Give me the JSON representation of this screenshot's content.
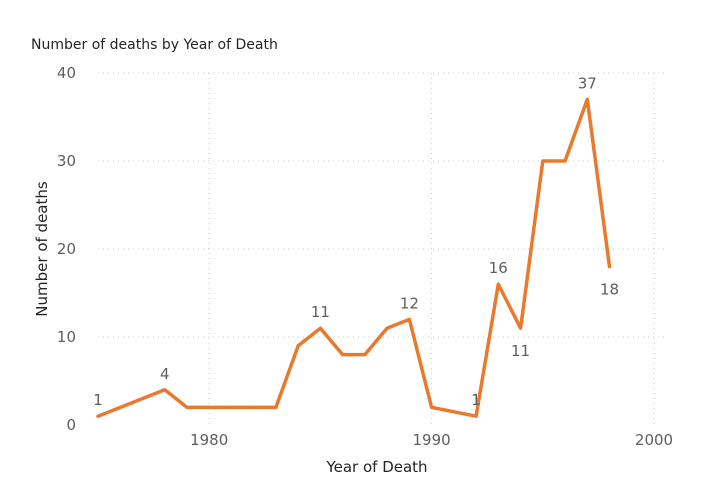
{
  "chart_data": {
    "type": "line",
    "title": "Number of deaths by Year of Death",
    "xlabel": "Year of Death",
    "ylabel": "Number of deaths",
    "xlim": [
      1975,
      2000
    ],
    "ylim": [
      0,
      40
    ],
    "x_ticks": [
      1980,
      1990,
      2000
    ],
    "y_ticks": [
      0,
      10,
      20,
      30,
      40
    ],
    "grid": "dotted",
    "line_color": "#E8792D",
    "series": [
      {
        "points": [
          {
            "x": 1975,
            "y": 1
          },
          {
            "x": 1978,
            "y": 4
          },
          {
            "x": 1979,
            "y": 2
          },
          {
            "x": 1980,
            "y": 2
          },
          {
            "x": 1981,
            "y": 2
          },
          {
            "x": 1982,
            "y": 2
          },
          {
            "x": 1983,
            "y": 2
          },
          {
            "x": 1984,
            "y": 9
          },
          {
            "x": 1985,
            "y": 11
          },
          {
            "x": 1986,
            "y": 8
          },
          {
            "x": 1987,
            "y": 8
          },
          {
            "x": 1988,
            "y": 11
          },
          {
            "x": 1989,
            "y": 12
          },
          {
            "x": 1990,
            "y": 2
          },
          {
            "x": 1992,
            "y": 1
          },
          {
            "x": 1993,
            "y": 16
          },
          {
            "x": 1994,
            "y": 11
          },
          {
            "x": 1995,
            "y": 30
          },
          {
            "x": 1996,
            "y": 30
          },
          {
            "x": 1997,
            "y": 37
          },
          {
            "x": 1998,
            "y": 18
          }
        ]
      }
    ],
    "data_labels": [
      {
        "x": 1975,
        "y": 1,
        "text": "1",
        "position": "above"
      },
      {
        "x": 1978,
        "y": 4,
        "text": "4",
        "position": "above"
      },
      {
        "x": 1985,
        "y": 11,
        "text": "11",
        "position": "above"
      },
      {
        "x": 1989,
        "y": 12,
        "text": "12",
        "position": "above"
      },
      {
        "x": 1992,
        "y": 1,
        "text": "1",
        "position": "above"
      },
      {
        "x": 1993,
        "y": 16,
        "text": "16",
        "position": "above"
      },
      {
        "x": 1994,
        "y": 11,
        "text": "11",
        "position": "below"
      },
      {
        "x": 1997,
        "y": 37,
        "text": "37",
        "position": "above"
      },
      {
        "x": 1998,
        "y": 18,
        "text": "18",
        "position": "below"
      }
    ]
  }
}
